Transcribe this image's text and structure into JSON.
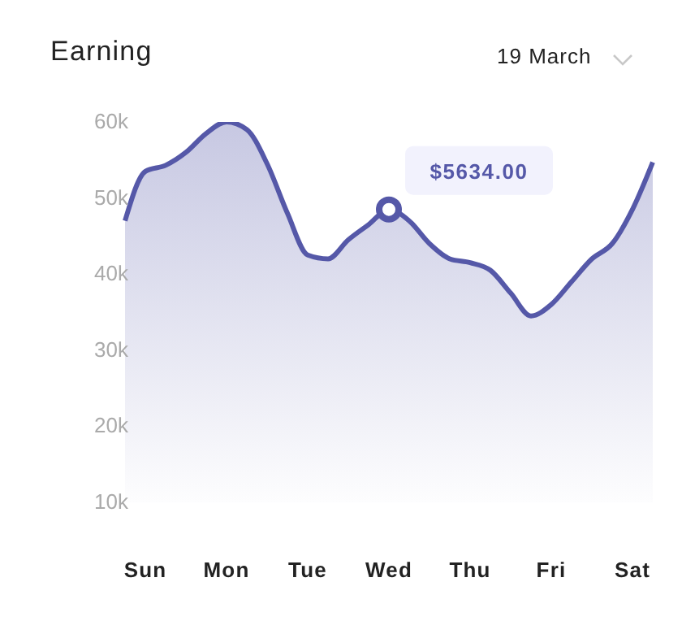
{
  "chart_data": {
    "type": "area",
    "title": "Earning",
    "subtitle": "19 March",
    "categories": [
      null,
      "Sun",
      null,
      null,
      null,
      "Mon",
      null,
      null,
      null,
      "Tue",
      null,
      null,
      null,
      "Wed",
      null,
      null,
      null,
      "Thu",
      null,
      null,
      null,
      "Fri",
      null,
      null,
      null,
      "Sat",
      null
    ],
    "series": [
      {
        "color": "#5558a8",
        "values": [
          47000,
          53500,
          54300,
          56000,
          58500,
          60000,
          59000,
          54500,
          48000,
          42500,
          42000,
          44500,
          46500,
          48500,
          47000,
          44000,
          42000,
          41500,
          40500,
          37500,
          34500,
          36000,
          39000,
          42000,
          44000,
          48500,
          54700
        ]
      }
    ],
    "ylim": [
      10000,
      60000
    ],
    "yticks": [
      {
        "value": 10000,
        "label": "10k"
      },
      {
        "value": 20000,
        "label": "20k"
      },
      {
        "value": 30000,
        "label": "30k"
      },
      {
        "value": 40000,
        "label": "40k"
      },
      {
        "value": 50000,
        "label": "50k"
      },
      {
        "value": 60000,
        "label": "60k"
      }
    ],
    "annotations": [
      {
        "text": "$5634.00",
        "x": "Wed",
        "y": 48500
      }
    ],
    "grid": false,
    "legend": false,
    "marker": "none"
  }
}
